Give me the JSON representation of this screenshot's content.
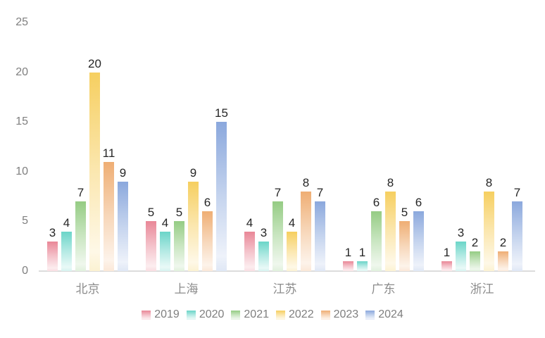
{
  "chart_data": {
    "type": "bar",
    "title": "",
    "categories": [
      "北京",
      "上海",
      "江苏",
      "广东",
      "浙江"
    ],
    "series": [
      {
        "name": "2019",
        "color": "#e98797",
        "values": [
          3,
          5,
          4,
          1,
          1
        ]
      },
      {
        "name": "2020",
        "color": "#6bd5c8",
        "values": [
          4,
          4,
          3,
          1,
          3
        ]
      },
      {
        "name": "2021",
        "color": "#95cc84",
        "values": [
          7,
          5,
          7,
          6,
          2
        ]
      },
      {
        "name": "2022",
        "color": "#f6cf60",
        "values": [
          20,
          9,
          4,
          8,
          8
        ]
      },
      {
        "name": "2023",
        "color": "#efae74",
        "values": [
          11,
          6,
          8,
          5,
          2
        ]
      },
      {
        "name": "2024",
        "color": "#8ba8dd",
        "values": [
          9,
          15,
          7,
          6,
          7
        ]
      }
    ],
    "ylim": [
      0,
      25
    ],
    "yticks": [
      0,
      5,
      10,
      15,
      20,
      25
    ],
    "grid": false,
    "legend_position": "bottom",
    "data_labels": true,
    "bar_fill_style": "vertical-gradient-fade-to-light"
  },
  "colors": {
    "background": "#ffffff",
    "axis_line": "#dcdcdc",
    "tick_label": "#7f7f7f",
    "category_label": "#8c8c8c",
    "data_label": "#262626",
    "legend_label": "#7f7f7f"
  }
}
